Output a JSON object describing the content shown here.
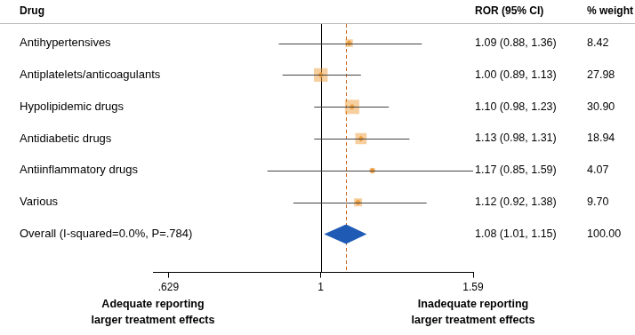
{
  "chart_data": {
    "type": "forest",
    "columns": [
      "Drug",
      "ROR (95% CI)",
      "% weight"
    ],
    "categories": [
      "Antihypertensives",
      "Antiplatelets/anticoagulants",
      "Hypolipidemic drugs",
      "Antidiabetic drugs",
      "Antiinflammatory drugs",
      "Various"
    ],
    "values": [
      1.09,
      1.0,
      1.1,
      1.13,
      1.17,
      1.12
    ],
    "lower": [
      0.88,
      0.89,
      0.98,
      0.98,
      0.85,
      0.92
    ],
    "upper": [
      1.36,
      1.13,
      1.23,
      1.31,
      1.59,
      1.38
    ],
    "value_labels": [
      "1.09 (0.88, 1.36)",
      "1.00 (0.89, 1.13)",
      "1.10 (0.98, 1.23)",
      "1.13 (0.98, 1.31)",
      "1.17 (0.85, 1.59)",
      "1.12 (0.92, 1.38)"
    ],
    "weights": [
      8.42,
      27.98,
      30.9,
      18.94,
      4.07,
      9.7
    ],
    "weight_labels": [
      "8.42",
      "27.98",
      "30.90",
      "18.94",
      "4.07",
      "9.70"
    ],
    "color": "#f0a040",
    "marker": "square",
    "overall": {
      "label": "Overall (I-squared=0.0%, P=.784)",
      "value": 1.08,
      "lower": 1.01,
      "upper": 1.15,
      "value_label": "1.08 (1.01, 1.15)",
      "weight": 100.0,
      "weight_label": "100.00",
      "color": "#1f5bb5",
      "marker": "diamond",
      "line_style": "dashed"
    },
    "reference": 1,
    "xlim": [
      0.629,
      1.59
    ],
    "xticks": [
      {
        "value": 0.629,
        "label": ".629"
      },
      1,
      1.59
    ],
    "log": "x",
    "grid": false,
    "annotations": [
      {
        "side": "left",
        "text": [
          "Adequate reporting",
          "larger treatment effects"
        ]
      },
      {
        "side": "right",
        "text": [
          "Inadequate reporting",
          "larger treatment effects"
        ]
      }
    ]
  }
}
